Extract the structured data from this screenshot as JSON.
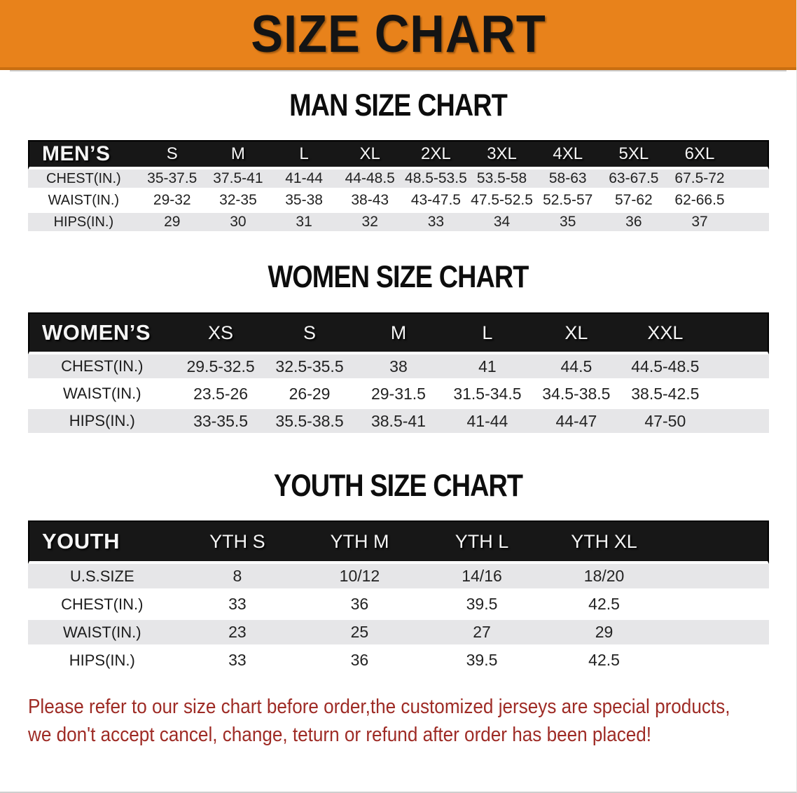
{
  "banner": {
    "title": "SIZE CHART",
    "bg_color": "#E8821B",
    "text_color": "#141414"
  },
  "colors": {
    "header_bar_bg": "#171717",
    "header_bar_text": "#f5f5f5",
    "row_stripe": "#e6e6e8",
    "disclaimer_red": "#9e2b25"
  },
  "sections": [
    {
      "heading": "MAN SIZE CHART",
      "table": {
        "header_label": "MEN’S",
        "columns": [
          "S",
          "M",
          "L",
          "XL",
          "2XL",
          "3XL",
          "4XL",
          "5XL",
          "6XL"
        ],
        "rows": [
          {
            "label": "CHEST(IN.)",
            "values": [
              "35-37.5",
              "37.5-41",
              "41-44",
              "44-48.5",
              "48.5-53.5",
              "53.5-58",
              "58-63",
              "63-67.5",
              "67.5-72"
            ]
          },
          {
            "label": "WAIST(IN.)",
            "values": [
              "29-32",
              "32-35",
              "35-38",
              "38-43",
              "43-47.5",
              "47.5-52.5",
              "52.5-57",
              "57-62",
              "62-66.5"
            ]
          },
          {
            "label": "HIPS(IN.)",
            "values": [
              "29",
              "30",
              "31",
              "32",
              "33",
              "34",
              "35",
              "36",
              "37"
            ]
          }
        ]
      }
    },
    {
      "heading": "WOMEN SIZE CHART",
      "table": {
        "header_label": "WOMEN’S",
        "columns": [
          "XS",
          "S",
          "M",
          "L",
          "XL",
          "XXL"
        ],
        "rows": [
          {
            "label": "CHEST(IN.)",
            "values": [
              "29.5-32.5",
              "32.5-35.5",
              "38",
              "41",
              "44.5",
              "44.5-48.5"
            ]
          },
          {
            "label": "WAIST(IN.)",
            "values": [
              "23.5-26",
              "26-29",
              "29-31.5",
              "31.5-34.5",
              "34.5-38.5",
              "38.5-42.5"
            ]
          },
          {
            "label": "HIPS(IN.)",
            "values": [
              "33-35.5",
              "35.5-38.5",
              "38.5-41",
              "41-44",
              "44-47",
              "47-50"
            ]
          }
        ]
      }
    },
    {
      "heading": "YOUTH SIZE CHART",
      "table": {
        "header_label": "YOUTH",
        "columns": [
          "YTH S",
          "YTH M",
          "YTH L",
          "YTH XL"
        ],
        "rows": [
          {
            "label": "U.S.SIZE",
            "values": [
              "8",
              "10/12",
              "14/16",
              "18/20"
            ]
          },
          {
            "label": "CHEST(IN.)",
            "values": [
              "33",
              "36",
              "39.5",
              "42.5"
            ]
          },
          {
            "label": "WAIST(IN.)",
            "values": [
              "23",
              "25",
              "27",
              "29"
            ]
          },
          {
            "label": "HIPS(IN.)",
            "values": [
              "33",
              "36",
              "39.5",
              "42.5"
            ]
          }
        ]
      }
    }
  ],
  "disclaimer": {
    "line1": "Please refer to our size chart before order,the customized jerseys are special products,",
    "line2": "we don't accept cancel, change, teturn or refund after order has been placed!"
  }
}
